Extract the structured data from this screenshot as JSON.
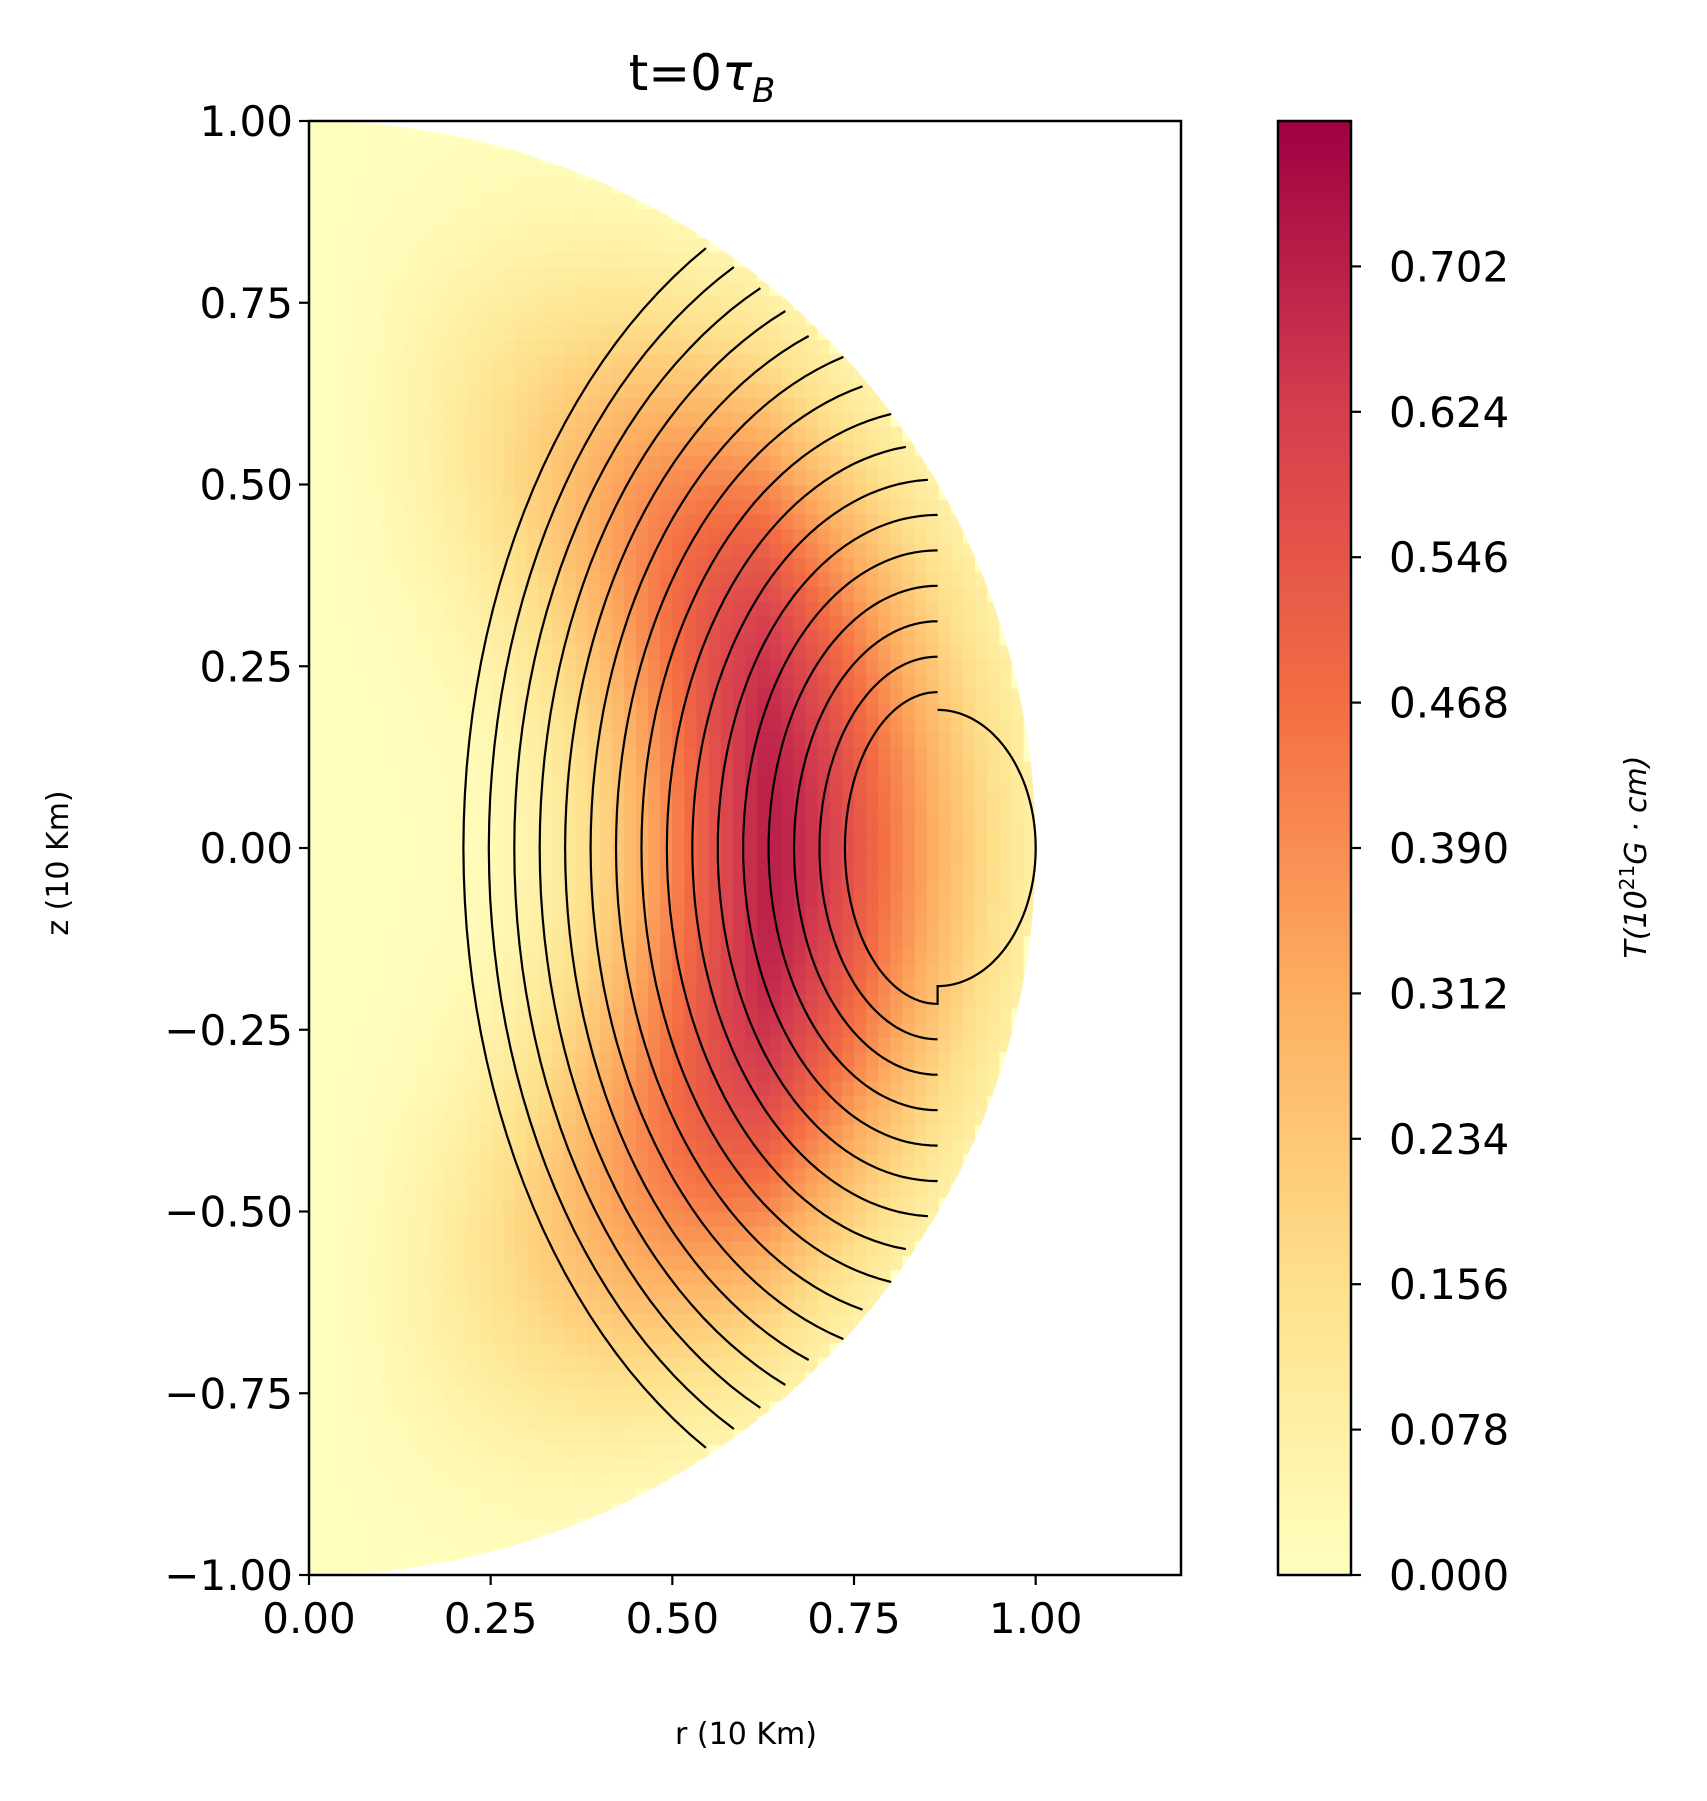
{
  "chart_data": {
    "type": "heatmap",
    "title": "t=0",
    "title_symbol": "τ",
    "title_subscript": "B",
    "xlabel": "r (10 Km)",
    "ylabel": "z (10 Km)",
    "xlim": [
      0.0,
      1.2
    ],
    "ylim": [
      -1.0,
      1.0
    ],
    "xticks": [
      "0.00",
      "0.25",
      "0.50",
      "0.75",
      "1.00"
    ],
    "yticks": [
      "1.00",
      "0.75",
      "0.50",
      "0.25",
      "0.00",
      "−0.25",
      "−0.50",
      "−0.75",
      "−1.00"
    ],
    "grid": false,
    "domain": "half-disk of radius 1.0 centred at r=0, z=0",
    "field_peak": {
      "r": 0.63,
      "z": 0.0,
      "value": 0.78
    },
    "contour_levels": 16,
    "colorbar": {
      "label_T": "T",
      "label_unit_open": "(10",
      "label_exponent": "21",
      "label_unit_close": "G · cm)",
      "min": 0.0,
      "max": 0.78,
      "ticks": [
        "0.000",
        "0.078",
        "0.156",
        "0.234",
        "0.312",
        "0.390",
        "0.468",
        "0.546",
        "0.624",
        "0.702"
      ],
      "colormap": "YlOrRd-Spectral",
      "colors": [
        "#ffffbf",
        "#fee08b",
        "#fdae61",
        "#f46d43",
        "#d53e4f",
        "#9e0142"
      ]
    }
  }
}
